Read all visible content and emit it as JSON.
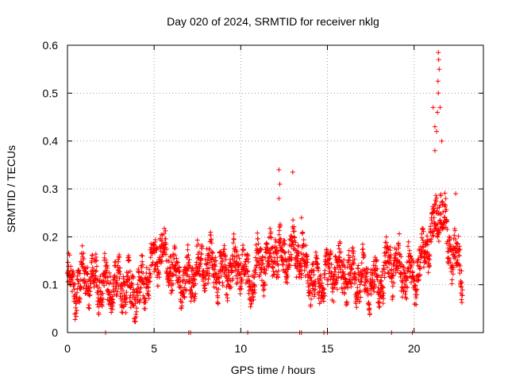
{
  "chart_data": {
    "type": "scatter",
    "title": "Day 020 of 2024, SRMTID for receiver nklg",
    "xlabel": "GPS time / hours",
    "ylabel": "SRMTID / TECUs",
    "xlim": [
      0,
      24
    ],
    "ylim": [
      0,
      0.6
    ],
    "xticks": [
      0,
      5,
      10,
      15,
      20
    ],
    "xtick_labels": [
      "0",
      "5",
      "10",
      "15",
      "20"
    ],
    "yticks": [
      0,
      0.1,
      0.2,
      0.3,
      0.4,
      0.5,
      0.6
    ],
    "ytick_labels": [
      "0",
      "0.1",
      "0.2",
      "0.3",
      "0.4",
      "0.5",
      "0.6"
    ],
    "grid": true,
    "marker": "+",
    "color": "#ff0000",
    "sampling_hours": 0.01,
    "trend_hours": [
      0,
      0.5,
      1,
      1.5,
      2,
      2.5,
      3,
      3.5,
      4,
      4.5,
      5,
      5.5,
      6,
      6.5,
      7,
      7.5,
      8,
      8.5,
      9,
      9.5,
      10,
      10.5,
      11,
      11.5,
      12,
      12.5,
      13,
      13.5,
      14,
      14.5,
      15,
      15.5,
      16,
      16.5,
      17,
      17.5,
      18,
      18.5,
      19,
      19.5,
      20,
      20.5,
      21,
      21.5,
      22,
      22.5,
      22.8
    ],
    "trend_values": [
      0.11,
      0.09,
      0.12,
      0.11,
      0.1,
      0.1,
      0.1,
      0.09,
      0.08,
      0.11,
      0.15,
      0.17,
      0.14,
      0.1,
      0.11,
      0.13,
      0.15,
      0.13,
      0.12,
      0.13,
      0.15,
      0.1,
      0.14,
      0.15,
      0.17,
      0.15,
      0.17,
      0.16,
      0.12,
      0.1,
      0.12,
      0.13,
      0.12,
      0.12,
      0.11,
      0.11,
      0.1,
      0.14,
      0.14,
      0.13,
      0.11,
      0.16,
      0.2,
      0.27,
      0.18,
      0.15,
      0.13
    ],
    "spikes": [
      {
        "x": 12.2,
        "y": 0.34
      },
      {
        "x": 12.25,
        "y": 0.31
      },
      {
        "x": 12.2,
        "y": 0.28
      },
      {
        "x": 13.0,
        "y": 0.335
      },
      {
        "x": 13.5,
        "y": 0.24
      },
      {
        "x": 21.1,
        "y": 0.47
      },
      {
        "x": 21.2,
        "y": 0.43
      },
      {
        "x": 21.4,
        "y": 0.585
      },
      {
        "x": 21.42,
        "y": 0.57
      },
      {
        "x": 21.45,
        "y": 0.55
      },
      {
        "x": 21.38,
        "y": 0.525
      },
      {
        "x": 21.4,
        "y": 0.5
      },
      {
        "x": 21.5,
        "y": 0.47
      },
      {
        "x": 21.35,
        "y": 0.46
      },
      {
        "x": 21.3,
        "y": 0.42
      },
      {
        "x": 21.2,
        "y": 0.38
      },
      {
        "x": 21.6,
        "y": 0.4
      },
      {
        "x": 22.4,
        "y": 0.29
      }
    ],
    "zero_points_hours": [
      2.2,
      7.0,
      7.1,
      10.4,
      13.4,
      13.5,
      14.8,
      15.0,
      18.7,
      19.9
    ]
  }
}
